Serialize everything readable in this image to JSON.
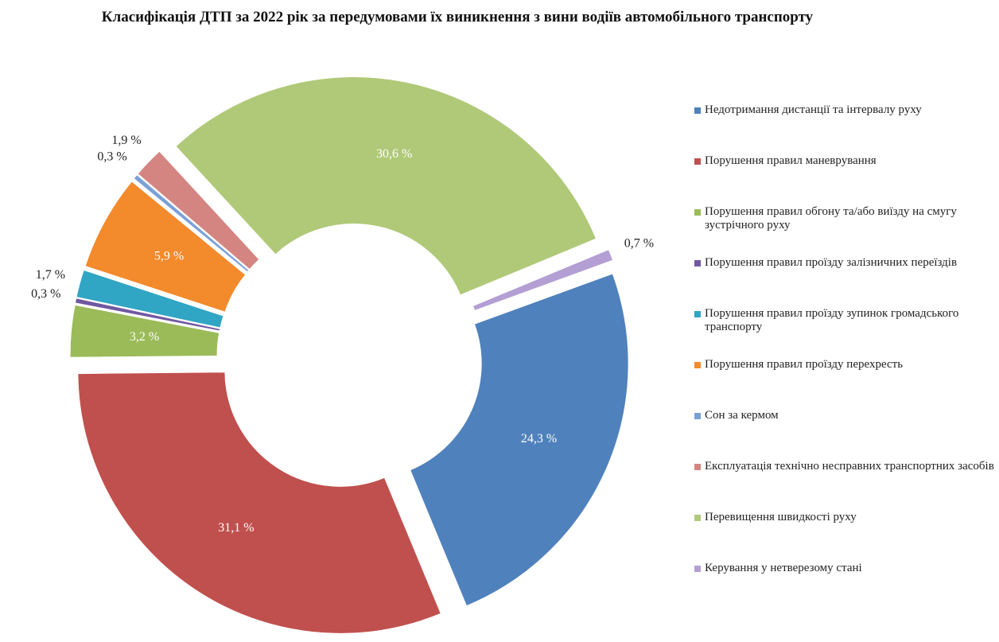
{
  "chart_data": {
    "type": "donut",
    "title": "Класифікація ДТП за 2022 рік за передумовами їх виникнення з вини водіїв автомобільного транспорту",
    "categories": [
      "Недотримання дистанції та інтервалу руху",
      "Порушення правил маневрування",
      "Порушення правил обгону та/або виїзду на смугу зустрічного руху",
      "Порушення правил проїзду залізничних переїздів",
      "Порушення правил проїзду зупинок громадського транспорту",
      "Порушення правил проїзду перехресть",
      "Сон за кермом",
      "Експлуатація технічно несправних транспортних засобів",
      "Перевищення швидкості руху",
      "Керування у нетверезому стані"
    ],
    "values": [
      24.3,
      31.1,
      3.2,
      0.3,
      1.7,
      5.9,
      0.3,
      1.9,
      30.6,
      0.7
    ],
    "value_labels": [
      "24,3 %",
      "31,1 %",
      "3,2 %",
      "0,3 %",
      "1,7 %",
      "5,9 %",
      "0,3 %",
      "1,9 %",
      "30,6 %",
      "0,7  %"
    ],
    "colors": [
      "#4f81bd",
      "#c0504d",
      "#9bbb59",
      "#7058a0",
      "#31a5c4",
      "#f38a2c",
      "#7aa0d6",
      "#d48582",
      "#b0c978",
      "#b39fd3"
    ],
    "legend": "right"
  }
}
